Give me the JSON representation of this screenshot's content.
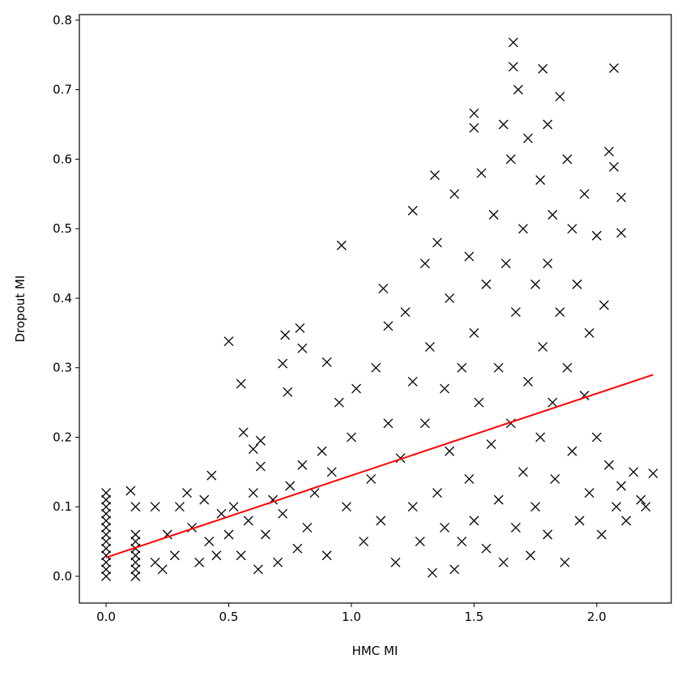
{
  "chart_data": {
    "type": "scatter",
    "xlabel": "HMC MI",
    "ylabel": "Dropout MI",
    "xlim": [
      -0.109,
      2.304
    ],
    "ylim": [
      -0.0385,
      0.808
    ],
    "xticks": [
      {
        "value": 0,
        "label": "0.0"
      },
      {
        "value": 0.5,
        "label": "0.5"
      },
      {
        "value": 1,
        "label": "1.0"
      },
      {
        "value": 1.5,
        "label": "1.5"
      },
      {
        "value": 2,
        "label": "2.0"
      }
    ],
    "yticks": [
      {
        "value": 0,
        "label": "0.0"
      },
      {
        "value": 0.1,
        "label": "0.1"
      },
      {
        "value": 0.2,
        "label": "0.2"
      },
      {
        "value": 0.3,
        "label": "0.3"
      },
      {
        "value": 0.4,
        "label": "0.4"
      },
      {
        "value": 0.5,
        "label": "0.5"
      },
      {
        "value": 0.6,
        "label": "0.6"
      },
      {
        "value": 0.7,
        "label": "0.7"
      },
      {
        "value": 0.8,
        "label": "0.8"
      }
    ],
    "series": [
      {
        "color": "#000000",
        "marker": "x",
        "x": [
          0,
          0,
          0,
          0,
          0,
          0,
          0,
          0,
          0,
          0,
          0,
          0,
          0,
          0.12,
          0.12,
          0.12,
          0.12,
          0.12,
          0.12,
          0.12,
          0.12,
          0.1,
          0.5,
          0.55,
          0.56,
          0.96,
          1.13,
          0.73,
          0.79,
          0.72,
          0.74,
          0.8,
          0.9,
          0.63,
          0.63,
          0.6,
          1.66,
          2.07,
          1.66,
          1.78,
          1.5,
          1.5,
          2.1,
          2.1,
          2.05,
          2.07,
          2.23,
          1.34,
          1.25,
          1.33,
          1.42,
          0.43,
          0.2,
          0.2,
          0.23,
          0.25,
          0.28,
          0.3,
          0.33,
          0.35,
          0.38,
          0.4,
          0.42,
          0.45,
          0.47,
          0.5,
          0.52,
          0.55,
          0.58,
          0.6,
          0.62,
          0.65,
          0.68,
          0.7,
          0.72,
          0.75,
          0.78,
          0.8,
          0.82,
          0.85,
          0.88,
          0.9,
          0.92,
          0.95,
          0.98,
          1.0,
          1.02,
          1.05,
          1.08,
          1.1,
          1.12,
          1.15,
          1.15,
          1.18,
          1.2,
          1.22,
          1.25,
          1.25,
          1.28,
          1.3,
          1.3,
          1.32,
          1.35,
          1.35,
          1.38,
          1.38,
          1.4,
          1.4,
          1.42,
          1.45,
          1.45,
          1.48,
          1.48,
          1.5,
          1.5,
          1.52,
          1.53,
          1.55,
          1.55,
          1.57,
          1.58,
          1.6,
          1.6,
          1.62,
          1.62,
          1.63,
          1.65,
          1.65,
          1.67,
          1.67,
          1.68,
          1.7,
          1.7,
          1.72,
          1.72,
          1.73,
          1.75,
          1.75,
          1.77,
          1.77,
          1.78,
          1.8,
          1.8,
          1.8,
          1.82,
          1.82,
          1.83,
          1.85,
          1.85,
          1.87,
          1.88,
          1.88,
          1.9,
          1.9,
          1.92,
          1.93,
          1.95,
          1.95,
          1.97,
          1.97,
          2.0,
          2.0,
          2.02,
          2.03,
          2.05,
          2.08,
          2.1,
          2.12,
          2.15,
          2.18,
          2.2
        ],
        "values": [
          0,
          0.01,
          0.02,
          0.03,
          0.04,
          0.05,
          0.06,
          0.07,
          0.08,
          0.09,
          0.1,
          0.11,
          0.12,
          0,
          0.01,
          0.02,
          0.03,
          0.04,
          0.05,
          0.06,
          0.1,
          0.123,
          0.338,
          0.277,
          0.207,
          0.476,
          0.414,
          0.347,
          0.357,
          0.306,
          0.265,
          0.328,
          0.308,
          0.195,
          0.158,
          0.183,
          0.768,
          0.731,
          0.733,
          0.73,
          0.666,
          0.645,
          0.545,
          0.494,
          0.611,
          0.589,
          0.148,
          0.577,
          0.526,
          0.005,
          0.01,
          0.145,
          0.1,
          0.02,
          0.01,
          0.06,
          0.03,
          0.1,
          0.12,
          0.07,
          0.02,
          0.11,
          0.05,
          0.03,
          0.09,
          0.06,
          0.1,
          0.03,
          0.08,
          0.12,
          0.01,
          0.06,
          0.11,
          0.02,
          0.09,
          0.13,
          0.04,
          0.16,
          0.07,
          0.12,
          0.18,
          0.03,
          0.15,
          0.25,
          0.1,
          0.2,
          0.27,
          0.05,
          0.14,
          0.3,
          0.08,
          0.36,
          0.22,
          0.02,
          0.17,
          0.38,
          0.28,
          0.1,
          0.05,
          0.45,
          0.22,
          0.33,
          0.48,
          0.12,
          0.27,
          0.07,
          0.4,
          0.18,
          0.55,
          0.3,
          0.05,
          0.46,
          0.14,
          0.35,
          0.08,
          0.25,
          0.58,
          0.04,
          0.42,
          0.19,
          0.52,
          0.11,
          0.3,
          0.65,
          0.02,
          0.45,
          0.22,
          0.6,
          0.07,
          0.38,
          0.7,
          0.15,
          0.5,
          0.28,
          0.63,
          0.03,
          0.42,
          0.1,
          0.57,
          0.2,
          0.33,
          0.65,
          0.06,
          0.45,
          0.25,
          0.52,
          0.14,
          0.69,
          0.38,
          0.02,
          0.3,
          0.6,
          0.18,
          0.5,
          0.42,
          0.08,
          0.55,
          0.26,
          0.35,
          0.12,
          0.49,
          0.2,
          0.06,
          0.39,
          0.16,
          0.1,
          0.13,
          0.08,
          0.15,
          0.11,
          0.1
        ]
      },
      {
        "color": "#ff0000",
        "marker": "line",
        "x": [
          0,
          2.23
        ],
        "values": [
          0.027,
          0.29
        ]
      }
    ]
  }
}
